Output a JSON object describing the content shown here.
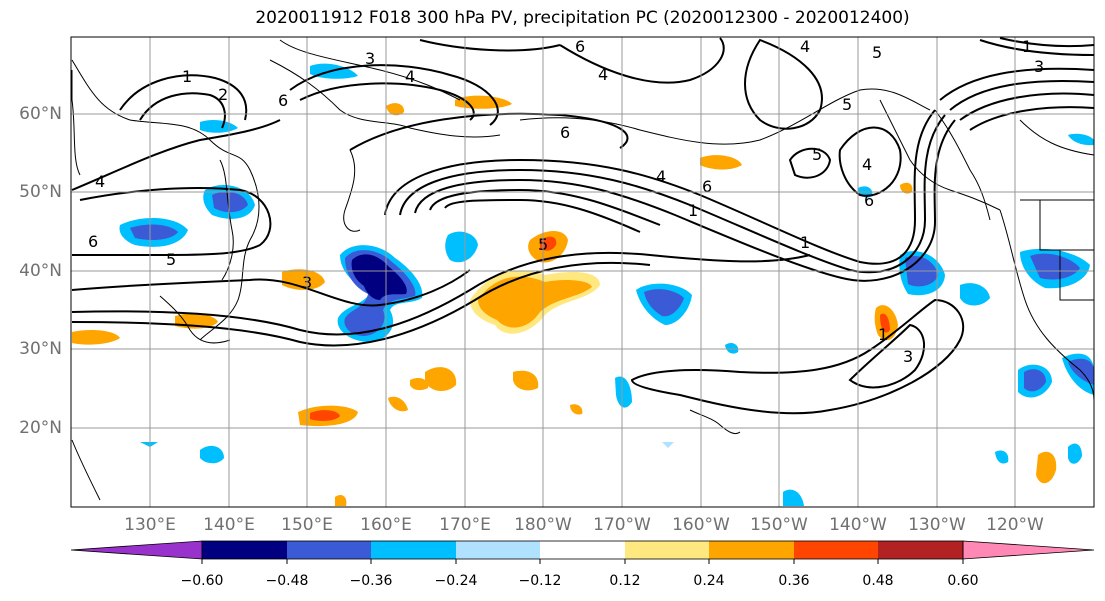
{
  "title": "2020011912 F018 300 hPa PV, precipitation PC (2020012300 - 2020012400)",
  "lat_labels": [
    "60°N",
    "50°N",
    "40°N",
    "30°N",
    "20°N"
  ],
  "lon_labels": [
    "130°E",
    "140°E",
    "150°E",
    "160°E",
    "170°E",
    "180°W",
    "170°W",
    "160°W",
    "150°W",
    "140°W",
    "130°W",
    "120°W"
  ],
  "colorbar": {
    "colors": [
      "#9932cc",
      "#000080",
      "#3b5bd6",
      "#00bfff",
      "#b0e2ff",
      "#ffffff",
      "#ffe880",
      "#ffa500",
      "#ff4500",
      "#b22222",
      "#ff88b4"
    ],
    "tick_labels": [
      "−0.60",
      "−0.48",
      "−0.36",
      "−0.24",
      "−0.12",
      "0.12",
      "0.24",
      "0.36",
      "0.48",
      "0.60"
    ]
  },
  "contour_labels": [
    "1",
    "2",
    "3",
    "4",
    "5",
    "6"
  ]
}
